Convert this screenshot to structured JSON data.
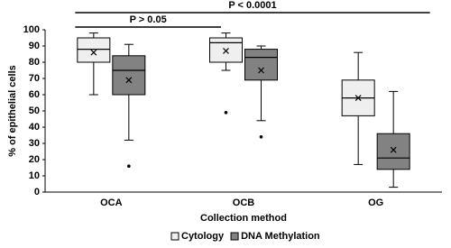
{
  "chart_data": {
    "type": "box",
    "y_label": "% of epithelial cells",
    "x_label": "Collection method",
    "categories": [
      "OCA",
      "OCB",
      "OG"
    ],
    "ylim": [
      0,
      100
    ],
    "yticks": [
      0,
      10,
      20,
      30,
      40,
      50,
      60,
      70,
      80,
      90,
      100
    ],
    "legend": "bottom",
    "annotations": [
      {
        "text": "P < 0.0001",
        "from": "OCA",
        "to": "OG"
      },
      {
        "text": "P > 0.05",
        "from": "OCA",
        "to": "OCB"
      }
    ],
    "series": [
      {
        "name": "Cytology",
        "color": "#efefef",
        "boxes": [
          {
            "min": 60,
            "q1": 80,
            "median": 88,
            "q3": 95,
            "max": 98,
            "mean": 86,
            "outliers": []
          },
          {
            "min": 75,
            "q1": 80,
            "median": 92,
            "q3": 95,
            "max": 98,
            "mean": 87,
            "outliers": [
              49
            ]
          },
          {
            "min": 17,
            "q1": 47,
            "median": 58,
            "q3": 69,
            "max": 86,
            "mean": 58,
            "outliers": []
          }
        ]
      },
      {
        "name": "DNA Methylation",
        "color": "#828282",
        "boxes": [
          {
            "min": 32,
            "q1": 60,
            "median": 75,
            "q3": 84,
            "max": 91,
            "mean": 69,
            "outliers": [
              16
            ]
          },
          {
            "min": 44,
            "q1": 69,
            "median": 83,
            "q3": 88,
            "max": 90,
            "mean": 75,
            "outliers": [
              34
            ]
          },
          {
            "min": 3,
            "q1": 14,
            "median": 21,
            "q3": 36,
            "max": 62,
            "mean": 26,
            "outliers": []
          }
        ]
      }
    ]
  }
}
